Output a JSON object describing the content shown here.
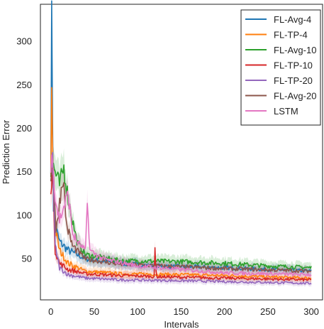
{
  "chart_data": {
    "type": "line",
    "xlabel": "Intervals",
    "ylabel": "Prediction Error",
    "xlim": [
      -12,
      313
    ],
    "ylim": [
      3,
      343
    ],
    "xticks": [
      0,
      50,
      100,
      150,
      200,
      250,
      300
    ],
    "yticks": [
      50,
      100,
      150,
      200,
      250,
      300
    ],
    "grid": false,
    "legend_position": "top-right",
    "series": [
      {
        "name": "FL-Avg-4",
        "color": "#1f77b4",
        "anchors": [
          [
            0,
            160
          ],
          [
            1,
            325
          ],
          [
            3,
            110
          ],
          [
            6,
            85
          ],
          [
            10,
            70
          ],
          [
            20,
            60
          ],
          [
            40,
            50
          ],
          [
            80,
            45
          ],
          [
            120,
            42
          ],
          [
            200,
            40
          ],
          [
            300,
            36
          ]
        ]
      },
      {
        "name": "FL-TP-4",
        "color": "#ff7f0e",
        "anchors": [
          [
            0,
            150
          ],
          [
            1,
            240
          ],
          [
            3,
            130
          ],
          [
            6,
            80
          ],
          [
            10,
            60
          ],
          [
            20,
            45
          ],
          [
            40,
            36
          ],
          [
            80,
            33
          ],
          [
            150,
            32
          ],
          [
            200,
            31
          ],
          [
            300,
            28
          ]
        ]
      },
      {
        "name": "FL-Avg-10",
        "color": "#2ca02c",
        "anchors": [
          [
            0,
            155
          ],
          [
            2,
            160
          ],
          [
            5,
            150
          ],
          [
            10,
            135
          ],
          [
            15,
            155
          ],
          [
            20,
            120
          ],
          [
            30,
            70
          ],
          [
            40,
            55
          ],
          [
            80,
            48
          ],
          [
            150,
            47
          ],
          [
            200,
            45
          ],
          [
            250,
            42
          ],
          [
            300,
            40
          ]
        ]
      },
      {
        "name": "FL-TP-10",
        "color": "#d62728",
        "anchors": [
          [
            0,
            135
          ],
          [
            2,
            150
          ],
          [
            5,
            60
          ],
          [
            10,
            45
          ],
          [
            20,
            38
          ],
          [
            40,
            33
          ],
          [
            80,
            31
          ],
          [
            150,
            29
          ],
          [
            200,
            28
          ],
          [
            300,
            26
          ]
        ]
      },
      {
        "name": "FL-TP-20",
        "color": "#9467bd",
        "anchors": [
          [
            0,
            140
          ],
          [
            2,
            170
          ],
          [
            5,
            65
          ],
          [
            10,
            40
          ],
          [
            20,
            32
          ],
          [
            40,
            28
          ],
          [
            80,
            26
          ],
          [
            150,
            25
          ],
          [
            200,
            24
          ],
          [
            300,
            22
          ]
        ]
      },
      {
        "name": "FL-Avg-20",
        "color": "#8c564b",
        "anchors": [
          [
            0,
            145
          ],
          [
            3,
            160
          ],
          [
            6,
            80
          ],
          [
            10,
            115
          ],
          [
            14,
            145
          ],
          [
            18,
            90
          ],
          [
            25,
            65
          ],
          [
            40,
            50
          ],
          [
            80,
            44
          ],
          [
            150,
            41
          ],
          [
            200,
            39
          ],
          [
            300,
            36
          ]
        ]
      },
      {
        "name": "LSTM",
        "color": "#e377c2",
        "anchors": [
          [
            0,
            150
          ],
          [
            2,
            175
          ],
          [
            5,
            120
          ],
          [
            10,
            95
          ],
          [
            15,
            110
          ],
          [
            20,
            125
          ],
          [
            25,
            80
          ],
          [
            30,
            70
          ],
          [
            40,
            60
          ],
          [
            42,
            115
          ],
          [
            45,
            60
          ],
          [
            60,
            50
          ],
          [
            100,
            42
          ],
          [
            150,
            38
          ],
          [
            200,
            34
          ],
          [
            300,
            32
          ]
        ]
      }
    ]
  }
}
